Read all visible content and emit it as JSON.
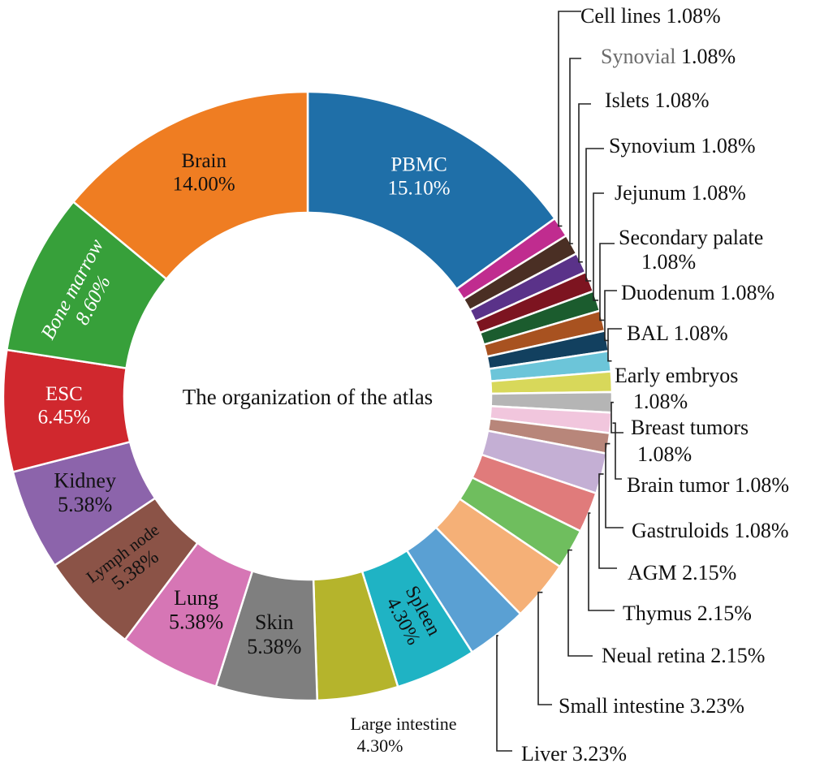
{
  "chart_data": {
    "type": "pie",
    "donut": true,
    "center_text": "The organization of the atlas",
    "slices": [
      {
        "name": "PBMC",
        "value": 15.1,
        "label": "15.10%",
        "color": "#1f6fa8"
      },
      {
        "name": "Cell lines",
        "value": 1.08,
        "label": "1.08%",
        "color": "#c02c8f"
      },
      {
        "name": "Synovial",
        "value": 1.08,
        "label": "1.08%",
        "color": "#4a2f24"
      },
      {
        "name": "Islets",
        "value": 1.08,
        "label": "1.08%",
        "color": "#5a3289"
      },
      {
        "name": "Synovium",
        "value": 1.08,
        "label": "1.08%",
        "color": "#7d1420"
      },
      {
        "name": "Jejunum",
        "value": 1.08,
        "label": "1.08%",
        "color": "#1b5c2e"
      },
      {
        "name": "Secondary palate",
        "value": 1.08,
        "label": "1.08%",
        "color": "#a85220"
      },
      {
        "name": "Duodenum",
        "value": 1.08,
        "label": "1.08%",
        "color": "#12405f"
      },
      {
        "name": "BAL",
        "value": 1.08,
        "label": "1.08%",
        "color": "#6cc5d9"
      },
      {
        "name": "Early embryos",
        "value": 1.08,
        "label": "1.08%",
        "color": "#d8d85a"
      },
      {
        "name": "Breast tumors",
        "value": 1.08,
        "label": "1.08%",
        "color": "#b5b5b5"
      },
      {
        "name": "Brain tumor",
        "value": 1.08,
        "label": "1.08%",
        "color": "#f1c6dd"
      },
      {
        "name": "Gastruloids",
        "value": 1.08,
        "label": "1.08%",
        "color": "#b8867a"
      },
      {
        "name": "AGM",
        "value": 2.15,
        "label": "2.15%",
        "color": "#c4afd4"
      },
      {
        "name": "Thymus",
        "value": 2.15,
        "label": "2.15%",
        "color": "#e07b7b"
      },
      {
        "name": "Neual retina",
        "value": 2.15,
        "label": "2.15%",
        "color": "#6fbe5e"
      },
      {
        "name": "Small intestine",
        "value": 3.23,
        "label": "3.23%",
        "color": "#f5b077"
      },
      {
        "name": "Liver",
        "value": 3.23,
        "label": "3.23%",
        "color": "#5aa0d3"
      },
      {
        "name": "Spleen",
        "value": 4.3,
        "label": "4.30%",
        "color": "#1fb3c4"
      },
      {
        "name": "Large intestine",
        "value": 4.3,
        "label": "4.30%",
        "color": "#b5b42c"
      },
      {
        "name": "Skin",
        "value": 5.38,
        "label": "5.38%",
        "color": "#7f7f7f"
      },
      {
        "name": "Lung",
        "value": 5.38,
        "label": "5.38%",
        "color": "#d676b5"
      },
      {
        "name": "Lymph node",
        "value": 5.38,
        "label": "5.38%",
        "color": "#8b5347"
      },
      {
        "name": "Kidney",
        "value": 5.38,
        "label": "5.38%",
        "color": "#8c64ab"
      },
      {
        "name": "ESC",
        "value": 6.45,
        "label": "6.45%",
        "color": "#d0282e"
      },
      {
        "name": "Bone marrow",
        "value": 8.6,
        "label": "8.60%",
        "color": "#37a03a"
      },
      {
        "name": "Brain",
        "value": 14.0,
        "label": "14.00%",
        "color": "#ef7d22"
      }
    ]
  }
}
